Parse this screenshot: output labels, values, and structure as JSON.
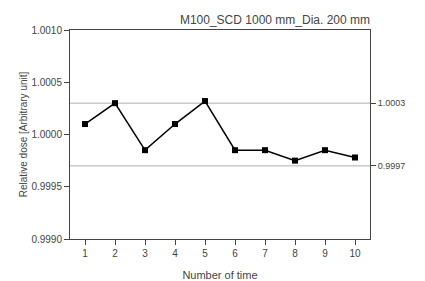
{
  "chart_data": {
    "type": "line",
    "title": "M100_SCD 1000 mm_Dia. 200 mm",
    "xlabel": "Number of time",
    "ylabel": "Relative dose [Arbitrary unit]",
    "x": [
      1,
      2,
      3,
      4,
      5,
      6,
      7,
      8,
      9,
      10
    ],
    "values": [
      1.0001,
      1.0003,
      0.99985,
      1.0001,
      1.00032,
      0.99985,
      0.99985,
      0.99975,
      0.99985,
      0.99978
    ],
    "color": "#000000",
    "marker": "square",
    "line_style": "solid",
    "xlim": [
      0.5,
      10.5
    ],
    "xticks": [
      1,
      2,
      3,
      4,
      5,
      6,
      7,
      8,
      9,
      10
    ],
    "ylim": [
      0.999,
      1.001
    ],
    "yticks": [
      {
        "value": 0.999,
        "label": "0.9990"
      },
      0.9995,
      {
        "value": 1.0,
        "label": "1.0000"
      },
      1.0005,
      {
        "value": 1.001,
        "label": "1.0010"
      }
    ],
    "y2lim": [
      0.999,
      1.001
    ],
    "y2ticks": [
      1.0003,
      0.9997
    ],
    "reference_lines": [
      {
        "value": 1.0003,
        "color": "#b0b0b0"
      },
      {
        "value": 0.9997,
        "color": "#b0b0b0"
      }
    ],
    "grid": false
  }
}
